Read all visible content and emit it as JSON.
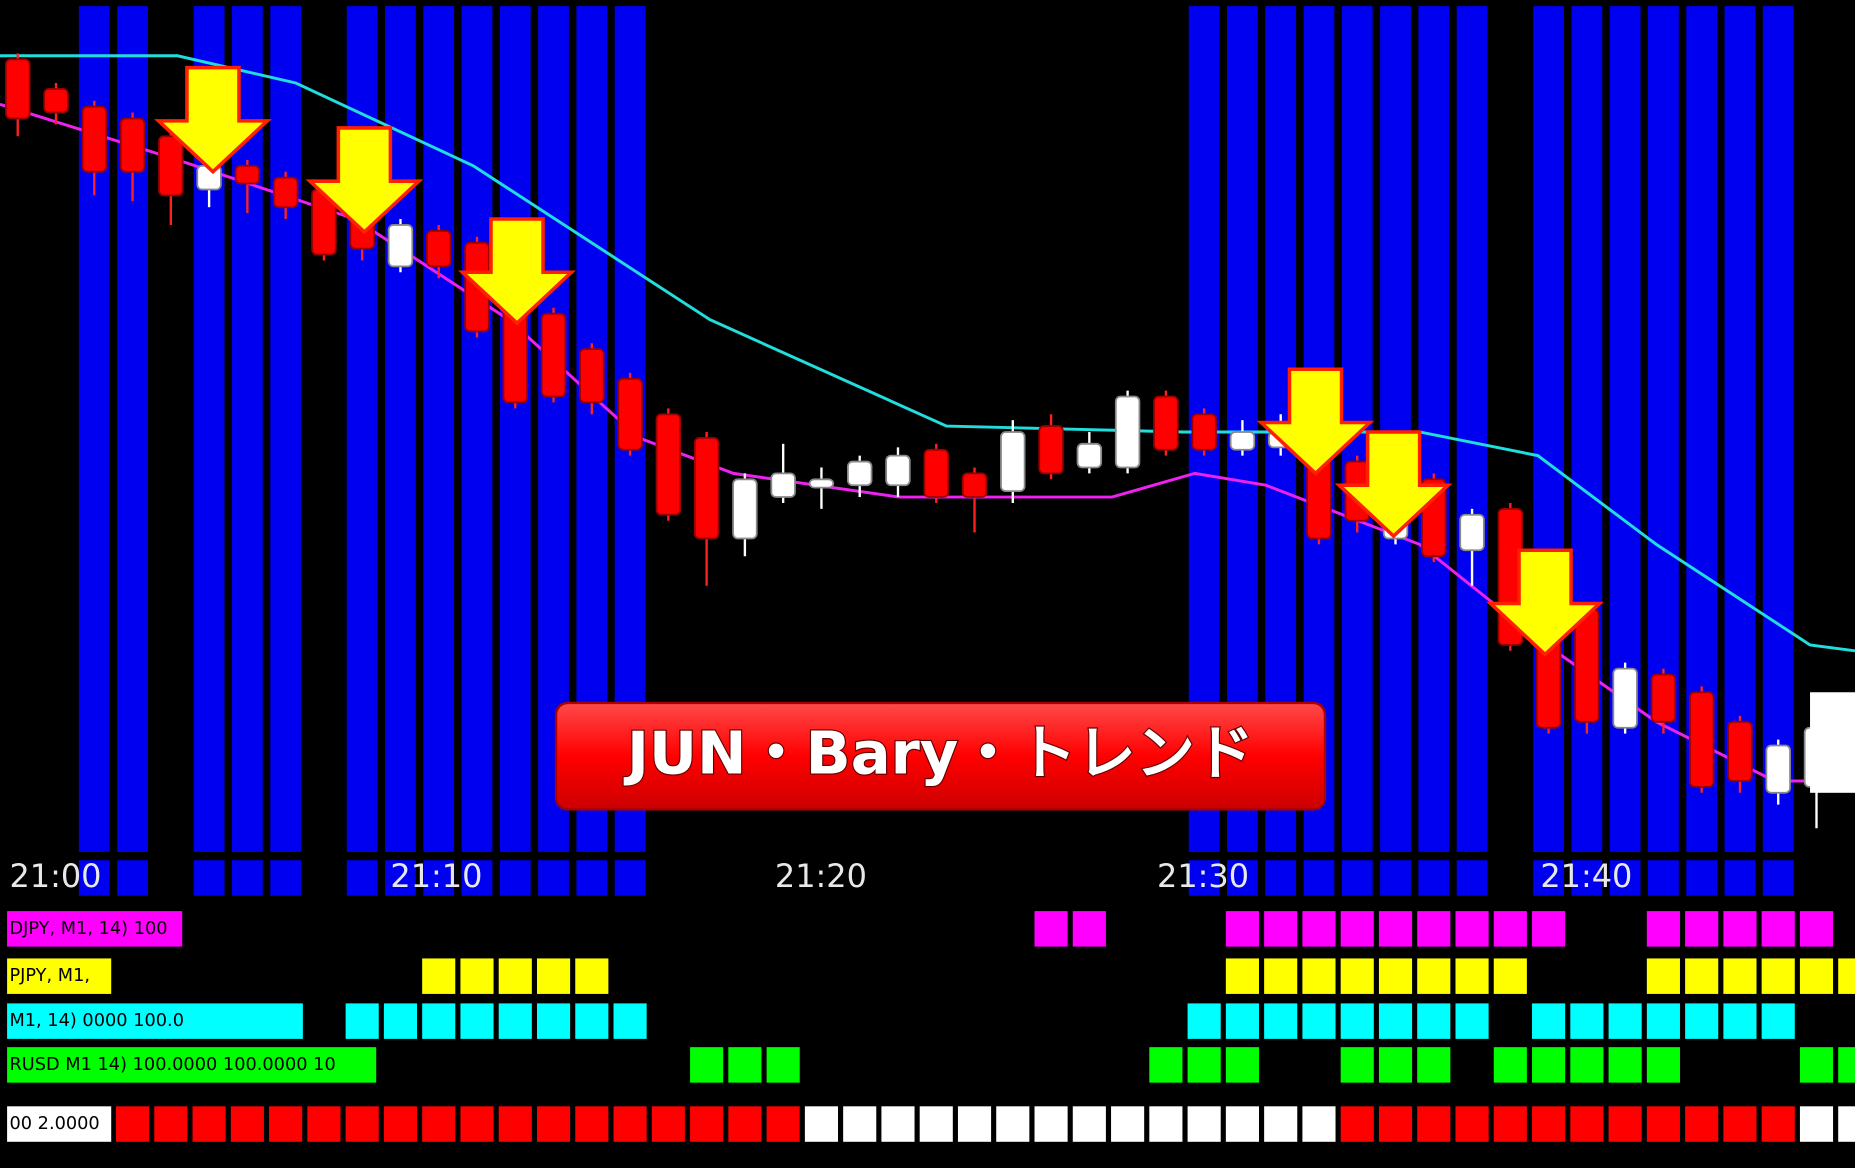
{
  "banner": "JUN・Bary・トレンド",
  "time_labels": [
    "21:00",
    "21:10",
    "21:20",
    "21:30",
    "21:40"
  ],
  "indicator_labels": [
    "DJPY, M1, 14) 100",
    "PJPY, M1,",
    "M1, 14)  0000 100.0",
    "RUSD M1 14) 100.0000 100.0000 10",
    "00 2.0000"
  ]
}
